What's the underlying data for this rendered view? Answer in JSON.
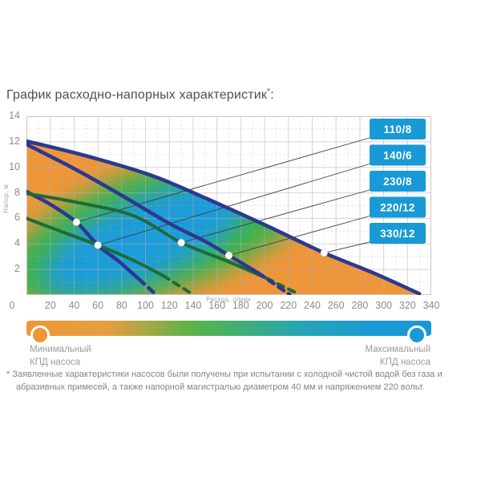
{
  "title": {
    "main": "График расходно-напорных характеристик",
    "sup": "*",
    "tail": ":"
  },
  "chart_data": {
    "type": "line",
    "title": "График расходно-напорных характеристик",
    "xlabel": "Расход, л/мин",
    "ylabel": "Напор, м",
    "xlim": [
      0,
      340
    ],
    "ylim": [
      0,
      14
    ],
    "x_ticks": [
      0,
      20,
      40,
      60,
      80,
      100,
      120,
      140,
      160,
      180,
      200,
      220,
      240,
      260,
      280,
      300,
      320,
      340
    ],
    "y_ticks": [
      2,
      4,
      6,
      8,
      10,
      12,
      14
    ],
    "grid": {
      "major_x": 20,
      "minor_x": 10,
      "major_y": 2,
      "minor_y": 1,
      "on": true
    },
    "legend_position": "right-inside",
    "series": [
      {
        "name": "110/8",
        "color": "#2B3990",
        "width": 4.6,
        "points": [
          [
            0,
            8.1
          ],
          [
            20,
            7.1
          ],
          [
            42,
            5.7
          ],
          [
            60,
            3.9
          ],
          [
            78,
            2.6
          ],
          [
            95,
            1.2
          ],
          [
            108,
            0.1
          ]
        ],
        "dash_from": 5,
        "marker": [
          42,
          5.7
        ]
      },
      {
        "name": "140/6",
        "color": "#1E6B38",
        "width": 4.0,
        "points": [
          [
            0,
            6.0
          ],
          [
            20,
            5.3
          ],
          [
            40,
            4.6
          ],
          [
            60,
            3.9
          ],
          [
            90,
            2.7
          ],
          [
            115,
            1.5
          ],
          [
            138,
            0.15
          ]
        ],
        "dash_from": 5,
        "marker": [
          60,
          3.9
        ]
      },
      {
        "name": "230/8",
        "color": "#1E6B38",
        "width": 4.0,
        "points": [
          [
            0,
            7.95
          ],
          [
            40,
            7.3
          ],
          [
            90,
            6.2
          ],
          [
            130,
            4.1
          ],
          [
            170,
            2.6
          ],
          [
            202,
            1.3
          ],
          [
            228,
            0.1
          ]
        ],
        "dash_from": 5,
        "marker": [
          130,
          4.1
        ]
      },
      {
        "name": "220/12",
        "color": "#2B3990",
        "width": 4.6,
        "points": [
          [
            0,
            11.8
          ],
          [
            40,
            9.9
          ],
          [
            80,
            7.8
          ],
          [
            120,
            5.6
          ],
          [
            150,
            4.2
          ],
          [
            170,
            3.1
          ],
          [
            195,
            1.7
          ],
          [
            221,
            0.05
          ]
        ],
        "dash_from": 6,
        "marker": [
          170,
          3.1
        ]
      },
      {
        "name": "330/12",
        "color": "#2B3990",
        "width": 4.6,
        "points": [
          [
            0,
            12.05
          ],
          [
            50,
            10.9
          ],
          [
            104,
            9.4
          ],
          [
            150,
            7.6
          ],
          [
            200,
            5.5
          ],
          [
            250,
            3.3
          ],
          [
            292,
            1.7
          ],
          [
            330,
            0.1
          ]
        ],
        "dash_from": 7,
        "marker": [
          250,
          3.3
        ]
      }
    ],
    "efficiency_field": {
      "low_color": "#EF9639",
      "mid_color": "#3FB34A",
      "high_color": "#1C9CD9"
    }
  },
  "label_boxes": {
    "fill": "#1999D6",
    "text_color": "#ffffff"
  },
  "legend": {
    "min": [
      "Минимальный",
      "КПД насоса"
    ],
    "max": [
      "Максимальный",
      "КПД насоса"
    ]
  },
  "footnote": "* Заявленные характеристики насосов были получены при испытании с холодной чистой водой без газа и абразивных примесей, а также напорной магистралью диаметром 40 мм и напряжением 220 вольт.",
  "colors": {
    "accent_blue": "#1999D6",
    "navy_curve": "#2B3990",
    "green_curve": "#1E6B38",
    "orange": "#EF9639",
    "grid": "#aeb2b5",
    "callout_line": "#3f4043"
  }
}
